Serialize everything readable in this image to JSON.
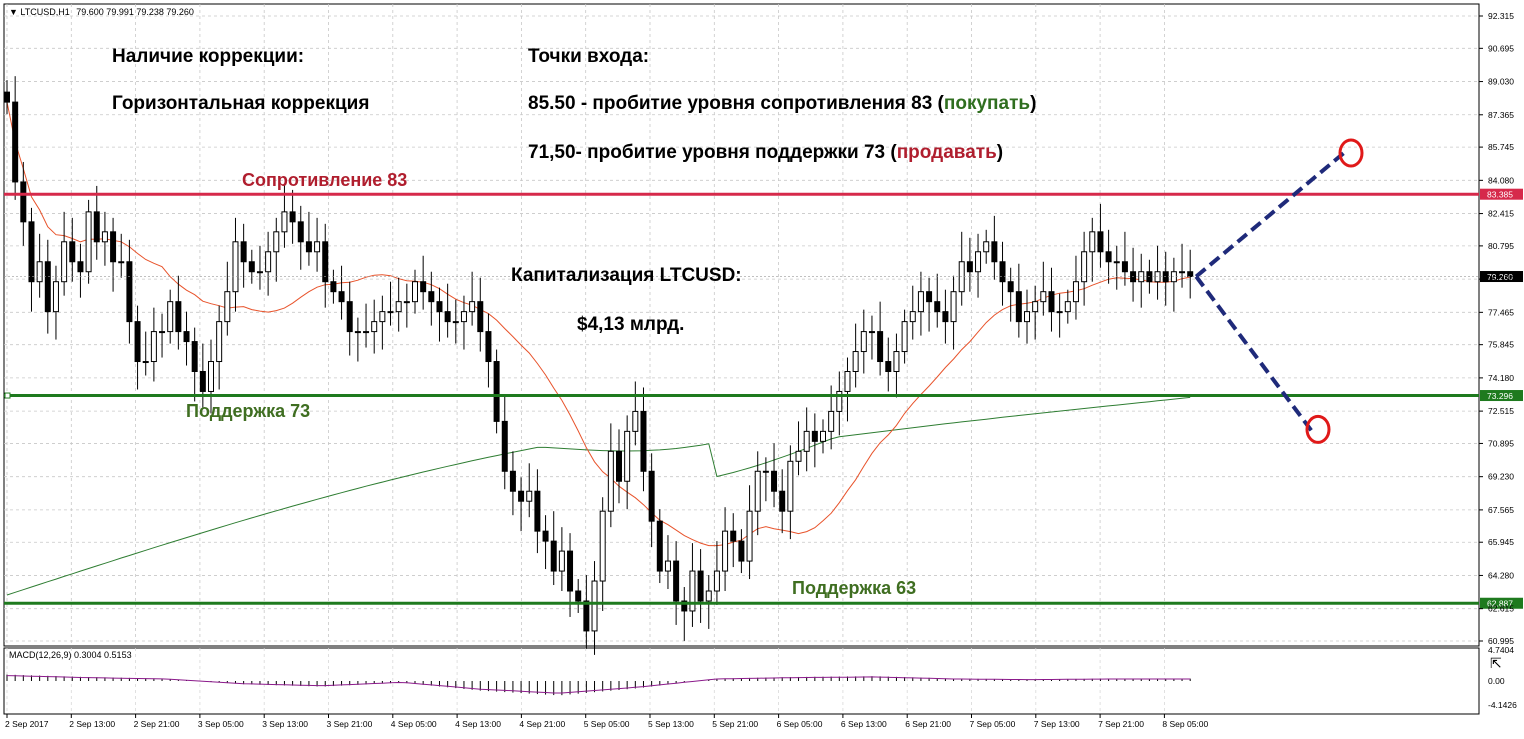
{
  "window": {
    "title": "LTCUSD,H1",
    "ohlc": "79.600 79.991 79.238 79.260"
  },
  "indicator": {
    "title": "MACD(12,26,9) 0.3004 0.5153",
    "axis": [
      "4.7404",
      "0.00",
      "-4.1426"
    ]
  },
  "annotations": {
    "correction_title": "Наличие коррекции:",
    "correction_type": "Горизонтальная коррекция",
    "entry_title": "Точки входа:",
    "buy_prefix": "85.50 - пробитие уровня сопротивления 83 (",
    "buy_word": "покупать",
    "buy_suffix": ")",
    "sell_prefix": "71,50- пробитие уровня поддержки 73 (",
    "sell_word": "продавать",
    "sell_suffix": ")",
    "cap_title": "Капитализация LTCUSD:",
    "cap_value": "$4,13 млрд."
  },
  "levels": {
    "resistance_label": "Сопротивление 83",
    "support73_label": "Поддержка 73",
    "support63_label": "Поддержка 63"
  },
  "colors": {
    "resistance": "#d6294a",
    "support": "#1e7a1e",
    "ma_fast": "#e8532b",
    "ma_slow": "#2e7d32",
    "projection": "#1f2a7a",
    "buy_word": "#2f6e1f",
    "sell_word": "#b01e2e",
    "macd": "#8b1a8b"
  },
  "chart_data": {
    "type": "candlestick",
    "symbol": "LTCUSD",
    "timeframe": "H1",
    "y_axis_ticks": [
      "92.315",
      "90.695",
      "89.030",
      "87.365",
      "85.745",
      "84.080",
      "82.415",
      "80.795",
      "79.130",
      "77.465",
      "75.845",
      "74.180",
      "72.515",
      "70.895",
      "69.230",
      "67.565",
      "65.945",
      "64.280",
      "62.615",
      "60.995"
    ],
    "ylim": [
      60.995,
      92.315
    ],
    "price_tags": [
      {
        "name": "resistance",
        "value": "83.385"
      },
      {
        "name": "current",
        "value": "79.260"
      },
      {
        "name": "support73",
        "value": "73.296"
      },
      {
        "name": "support63",
        "value": "62.887"
      }
    ],
    "x_tick_labels": [
      "2 Sep 2017",
      "2 Sep 13:00",
      "2 Sep 21:00",
      "3 Sep 05:00",
      "3 Sep 13:00",
      "3 Sep 21:00",
      "4 Sep 05:00",
      "4 Sep 13:00",
      "4 Sep 21:00",
      "5 Sep 05:00",
      "5 Sep 13:00",
      "5 Sep 21:00",
      "6 Sep 05:00",
      "6 Sep 13:00",
      "6 Sep 21:00",
      "7 Sep 05:00",
      "7 Sep 13:00",
      "7 Sep 21:00",
      "8 Sep 05:00"
    ],
    "candle_count": 144,
    "series": [
      {
        "name": "close",
        "values": [
          88.0,
          84.0,
          82.0,
          79.0,
          80.0,
          77.5,
          79.0,
          81.0,
          80.0,
          79.5,
          82.5,
          81.0,
          81.5,
          80.0,
          80.0,
          77.0,
          75.0,
          75.0,
          76.5,
          76.5,
          78.0,
          76.5,
          76.0,
          74.5,
          73.5,
          75.0,
          77.0,
          78.5,
          81.0,
          80.0,
          79.5,
          79.5,
          80.5,
          81.5,
          82.5,
          82.0,
          81.0,
          80.5,
          81.0,
          79.0,
          78.5,
          78.0,
          76.5,
          76.5,
          76.5,
          77.0,
          77.5,
          77.5,
          78.0,
          78.0,
          79.0,
          78.5,
          78.0,
          77.5,
          77.0,
          77.0,
          77.5,
          78.0,
          76.5,
          75.0,
          72.0,
          69.5,
          68.5,
          68.0,
          68.5,
          66.5,
          66.0,
          64.5,
          65.5,
          63.5,
          63.0,
          61.5,
          64.0,
          67.5,
          70.5,
          69.0,
          71.5,
          72.5,
          69.5,
          67.0,
          64.5,
          65.0,
          63.0,
          62.5,
          64.5,
          63.0,
          63.5,
          64.5,
          66.5,
          66.0,
          65.0,
          67.5,
          69.5,
          69.5,
          68.5,
          67.5,
          70.0,
          70.5,
          71.5,
          71.0,
          71.5,
          72.5,
          73.5,
          74.5,
          75.5,
          76.5,
          76.5,
          75.0,
          74.5,
          75.5,
          77.0,
          77.5,
          78.5,
          78.0,
          77.5,
          77.0,
          78.5,
          80.0,
          79.5,
          80.5,
          81.0,
          80.0,
          79.0,
          78.5,
          77.0,
          77.5,
          78.0,
          78.5,
          77.5,
          77.5,
          78.0,
          79.0,
          80.5,
          81.5,
          80.5,
          80.0,
          80.0,
          79.5,
          79.0,
          79.5,
          79.0,
          79.5,
          79.0,
          79.5,
          79.5,
          79.26
        ]
      },
      {
        "name": "MA slow",
        "values": [
          64.0,
          71.0,
          73.2
        ]
      },
      {
        "name": "MA fast",
        "values": [
          77.0,
          78.2,
          71.0,
          78.0
        ]
      },
      {
        "name": "MACD",
        "values": [
          0.8,
          0.5,
          0.3,
          -0.4,
          -0.7,
          -0.2,
          -1.2,
          -1.8,
          -0.9,
          0.3,
          0.5,
          0.6,
          0.3,
          0.2,
          0.3,
          0.3
        ]
      }
    ],
    "projection": {
      "from": 79.26,
      "targets": [
        85.5,
        71.5
      ]
    }
  }
}
